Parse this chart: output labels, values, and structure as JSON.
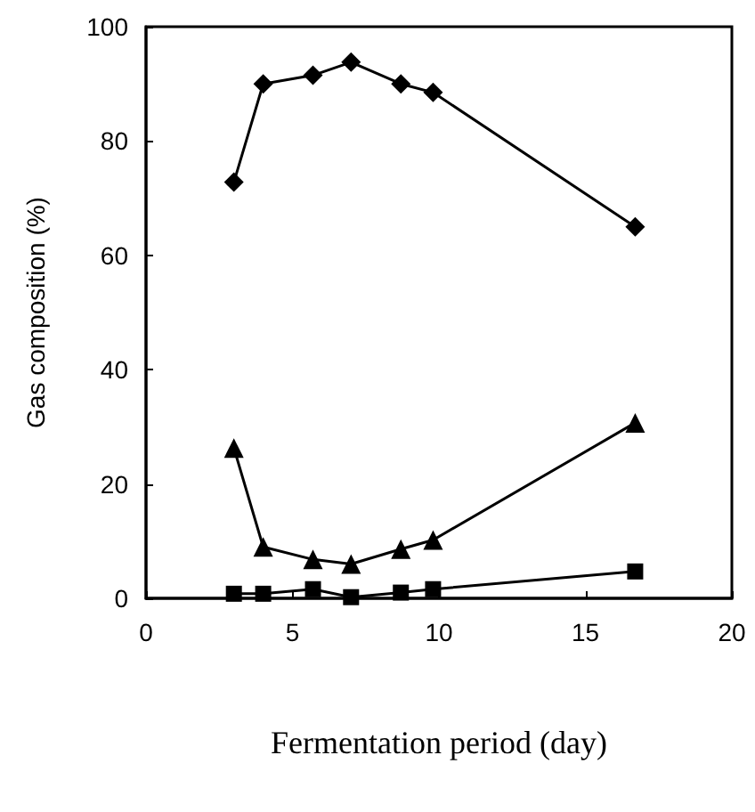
{
  "chart_data": {
    "type": "line",
    "xlabel": "Fermentation period (day)",
    "ylabel": "Gas composition (%)",
    "x": [
      3,
      4,
      5.7,
      7,
      8.7,
      9.8,
      16.7
    ],
    "series": [
      {
        "color": "#000000",
        "marker": "diamond",
        "values": [
          72.8,
          90,
          91.5,
          93.8,
          90,
          88.5,
          65
        ]
      },
      {
        "color": "#000000",
        "marker": "triangle",
        "values": [
          26.3,
          9,
          6.8,
          6,
          8.6,
          10.2,
          30.7
        ]
      },
      {
        "color": "#000000",
        "marker": "square",
        "values": [
          0.8,
          0.8,
          1.6,
          0.2,
          1,
          1.6,
          4.7
        ]
      }
    ],
    "xlim": [
      0,
      20
    ],
    "xticks": [
      0,
      5,
      10,
      15,
      20
    ],
    "ylim": [
      0,
      100
    ],
    "yticks": [
      0,
      20,
      40,
      60,
      80,
      100
    ],
    "grid": false,
    "line_style": "solid"
  }
}
